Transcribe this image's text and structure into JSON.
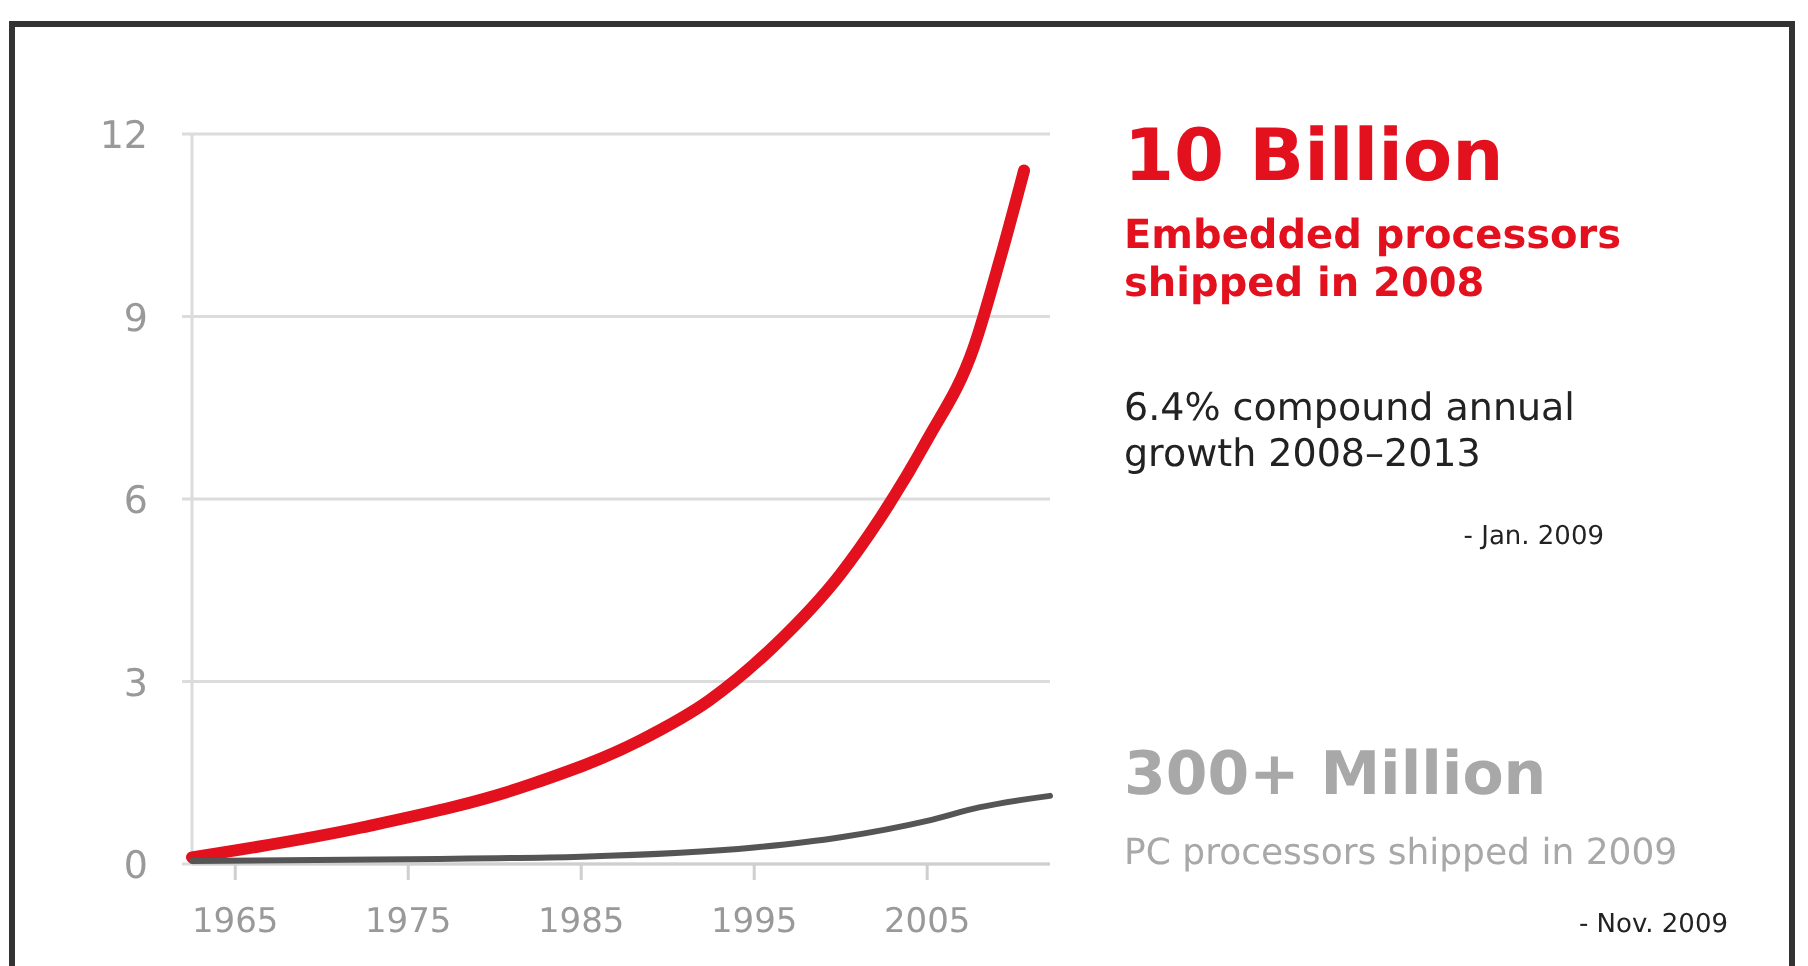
{
  "chart_data": {
    "type": "line",
    "xlim": [
      1962.5,
      2012.1
    ],
    "xticks": [
      1965,
      1975,
      1985,
      1995,
      2005
    ],
    "ylim": [
      0,
      12
    ],
    "yticks": [
      0,
      3,
      6,
      9,
      12
    ],
    "grid": "y",
    "line_style": "solid",
    "marker": "none",
    "series": [
      {
        "color": "#e3101e",
        "x": [
          1962.5,
          1972.3,
          1982.2,
          1988.4,
          1992.4,
          1996.1,
          2000.0,
          2002.2,
          2005.0,
          2007.7,
          2009.2,
          2010.6
        ],
        "values": [
          0.11,
          0.6,
          1.32,
          2.03,
          2.69,
          3.57,
          4.77,
          5.65,
          6.97,
          8.5,
          9.93,
          11.4
        ]
      },
      {
        "color": "#555555",
        "x": [
          1962.5,
          1975,
          1985,
          1995,
          2000,
          2005,
          2008,
          2012.1
        ],
        "values": [
          0.05,
          0.08,
          0.12,
          0.27,
          0.44,
          0.71,
          0.93,
          1.12
        ]
      }
    ],
    "annotations": [
      "10 Billion",
      "Embedded processors shipped in 2008",
      "6.4% compound annual growth 2008–2013",
      "- Jan. 2009",
      "300+ Million",
      "PC processors shipped in 2009",
      "- Nov. 2009"
    ]
  }
}
